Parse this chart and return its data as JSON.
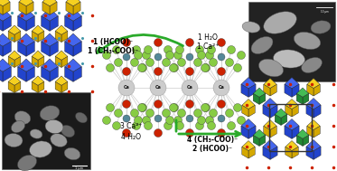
{
  "figsize": [
    3.73,
    1.89
  ],
  "dpi": 100,
  "bg_color": "#ffffff",
  "arrow_color": "#2aaa2a",
  "text_color": "#000000",
  "top_arrow": {
    "label_left_line1": "1 (HCOO)⁻",
    "label_left_line2": "1 (CH₃-COO)⁻",
    "label_right_line1": "1 H₂O",
    "label_right_line2": "1 Ca²⁺"
  },
  "bottom_arrow": {
    "label_left_line1": "3 Ca²⁺",
    "label_left_line2": "4 H₂O",
    "label_right_line1": "4 (CH₃-COO)⁻",
    "label_right_line2": "2 (HCOO)⁻"
  },
  "tl_yellow": "#d4a800",
  "tl_yellow_light": "#f5d020",
  "tl_blue": "#2244cc",
  "tl_blue_light": "#4466ee",
  "tl_red": "#cc2200",
  "tl_teal": "#4499aa",
  "br_yellow": "#d4a800",
  "br_yellow_light": "#f5d020",
  "br_green": "#228833",
  "br_green_light": "#44bb55",
  "br_blue": "#2244cc",
  "br_blue_light": "#4466ee",
  "br_red": "#cc2200",
  "mol_green": "#88cc44",
  "mol_red": "#cc2200",
  "mol_teal": "#558899",
  "mol_ca": "#cccccc",
  "mol_ca_edge": "#888888",
  "mol_line": "#cccccc"
}
